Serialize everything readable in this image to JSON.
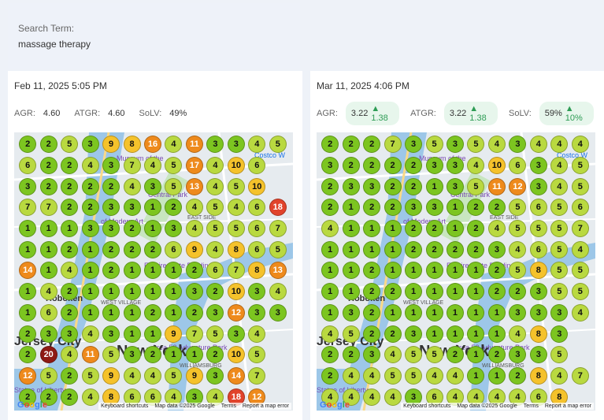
{
  "search": {
    "label": "Search Term:",
    "value": "massage therapy"
  },
  "colors": {
    "green": "#7cc520",
    "lime": "#b9d940",
    "yellow": "#f5c22b",
    "orange": "#ee8a1c",
    "red": "#e1432b",
    "darkred": "#8e1a14"
  },
  "panels": [
    {
      "title": "Feb 11, 2025 5:05 PM",
      "agr_label": "AGR:",
      "agr_value": "4.60",
      "atgr_label": "ATGR:",
      "atgr_value": "4.60",
      "solv_label": "SoLV:",
      "solv_value": "49%",
      "grid": [
        [
          2,
          2,
          5,
          3,
          9,
          8,
          16,
          4,
          11,
          3,
          3,
          4,
          5
        ],
        [
          6,
          2,
          2,
          4,
          3,
          7,
          4,
          5,
          17,
          4,
          10,
          6,
          0
        ],
        [
          3,
          2,
          2,
          2,
          2,
          4,
          3,
          5,
          13,
          4,
          5,
          10,
          0
        ],
        [
          7,
          7,
          2,
          2,
          3,
          3,
          1,
          2,
          4,
          5,
          4,
          6,
          18
        ],
        [
          1,
          1,
          1,
          3,
          3,
          2,
          1,
          3,
          4,
          5,
          5,
          6,
          7
        ],
        [
          1,
          1,
          2,
          1,
          2,
          2,
          2,
          6,
          9,
          4,
          8,
          6,
          5
        ],
        [
          14,
          1,
          4,
          1,
          2,
          1,
          1,
          1,
          2,
          6,
          7,
          8,
          13
        ],
        [
          1,
          4,
          2,
          1,
          1,
          1,
          1,
          1,
          3,
          2,
          10,
          3,
          4
        ],
        [
          1,
          6,
          2,
          1,
          1,
          1,
          2,
          1,
          2,
          3,
          12,
          3,
          3
        ],
        [
          2,
          3,
          3,
          4,
          3,
          1,
          1,
          9,
          7,
          5,
          3,
          4,
          0
        ],
        [
          2,
          20,
          4,
          11,
          5,
          3,
          2,
          1,
          1,
          2,
          10,
          5,
          0
        ],
        [
          12,
          5,
          2,
          5,
          9,
          4,
          4,
          5,
          9,
          3,
          14,
          7,
          0
        ],
        [
          2,
          2,
          2,
          4,
          8,
          6,
          6,
          4,
          3,
          4,
          18,
          12,
          0
        ]
      ],
      "grid_colors": [
        [
          "green",
          "green",
          "lime",
          "green",
          "yellow",
          "yellow",
          "orange",
          "lime",
          "orange",
          "green",
          "green",
          "lime",
          "lime"
        ],
        [
          "lime",
          "green",
          "green",
          "lime",
          "green",
          "lime",
          "lime",
          "lime",
          "orange",
          "lime",
          "yellow",
          "lime",
          "none"
        ],
        [
          "green",
          "green",
          "green",
          "green",
          "green",
          "lime",
          "green",
          "lime",
          "orange",
          "lime",
          "lime",
          "yellow",
          "none"
        ],
        [
          "lime",
          "lime",
          "green",
          "green",
          "green",
          "green",
          "green",
          "green",
          "lime",
          "lime",
          "lime",
          "lime",
          "red"
        ],
        [
          "green",
          "green",
          "green",
          "green",
          "green",
          "green",
          "green",
          "green",
          "lime",
          "lime",
          "lime",
          "lime",
          "lime"
        ],
        [
          "green",
          "green",
          "green",
          "green",
          "green",
          "green",
          "green",
          "lime",
          "yellow",
          "lime",
          "yellow",
          "lime",
          "lime"
        ],
        [
          "orange",
          "green",
          "lime",
          "green",
          "green",
          "green",
          "green",
          "green",
          "green",
          "lime",
          "lime",
          "yellow",
          "orange"
        ],
        [
          "green",
          "lime",
          "green",
          "green",
          "green",
          "green",
          "green",
          "green",
          "green",
          "green",
          "yellow",
          "green",
          "lime"
        ],
        [
          "green",
          "lime",
          "green",
          "green",
          "green",
          "green",
          "green",
          "green",
          "green",
          "green",
          "orange",
          "green",
          "green"
        ],
        [
          "green",
          "green",
          "green",
          "lime",
          "green",
          "green",
          "green",
          "yellow",
          "lime",
          "lime",
          "green",
          "lime",
          "none"
        ],
        [
          "green",
          "darkred",
          "lime",
          "orange",
          "lime",
          "green",
          "green",
          "green",
          "green",
          "green",
          "yellow",
          "lime",
          "none"
        ],
        [
          "orange",
          "lime",
          "green",
          "lime",
          "yellow",
          "lime",
          "lime",
          "lime",
          "yellow",
          "green",
          "orange",
          "lime",
          "none"
        ],
        [
          "green",
          "green",
          "green",
          "lime",
          "yellow",
          "lime",
          "lime",
          "lime",
          "green",
          "lime",
          "red",
          "orange",
          "none"
        ]
      ],
      "map_labels": [
        {
          "text": "Museum of the",
          "cls": "poi"
        },
        {
          "text": "of Modern Art",
          "cls": "poi"
        },
        {
          "text": "Costco W",
          "cls": "poi"
        },
        {
          "text": "Central Park",
          "cls": "poi"
        },
        {
          "text": "EAST SIDE",
          "cls": "small"
        },
        {
          "text": "Empire State Building",
          "cls": "poi"
        },
        {
          "text": "Hoboken",
          "cls": "city"
        },
        {
          "text": "WEST VILLAGE",
          "cls": "small"
        },
        {
          "text": "Jersey City",
          "cls": "big"
        },
        {
          "text": "New York",
          "cls": "big"
        },
        {
          "text": "WILLIAMSBURG",
          "cls": "small"
        },
        {
          "text": "Statue of Liberty",
          "cls": "poi"
        },
        {
          "text": "Area 53 Adventure Park",
          "cls": "poi"
        }
      ],
      "footer": {
        "shortcuts": "Keyboard shortcuts",
        "mapdata": "Map data ©2025 Google",
        "terms": "Terms",
        "report": "Report a map error"
      }
    },
    {
      "title": "Mar 11, 2025 4:06 PM",
      "agr_label": "AGR:",
      "agr_value": "3.22",
      "agr_delta": "▲ 1.38",
      "atgr_label": "ATGR:",
      "atgr_value": "3.22",
      "atgr_delta": "▲ 1.38",
      "solv_label": "SoLV:",
      "solv_value": "59%",
      "solv_delta": "▲ 10%",
      "grid": [
        [
          2,
          2,
          2,
          7,
          3,
          5,
          3,
          5,
          4,
          3,
          4,
          4,
          4
        ],
        [
          3,
          2,
          2,
          2,
          2,
          3,
          3,
          4,
          10,
          6,
          3,
          4,
          5
        ],
        [
          2,
          3,
          3,
          2,
          2,
          1,
          3,
          5,
          11,
          12,
          3,
          4,
          5
        ],
        [
          2,
          1,
          2,
          2,
          3,
          3,
          1,
          2,
          2,
          5,
          6,
          5,
          6
        ],
        [
          4,
          1,
          1,
          1,
          2,
          2,
          1,
          2,
          4,
          5,
          5,
          5,
          7
        ],
        [
          1,
          1,
          1,
          1,
          2,
          2,
          2,
          2,
          3,
          4,
          6,
          5,
          4
        ],
        [
          1,
          1,
          2,
          1,
          1,
          1,
          1,
          1,
          2,
          5,
          8,
          5,
          5
        ],
        [
          1,
          1,
          2,
          2,
          1,
          1,
          1,
          1,
          2,
          2,
          3,
          5,
          5
        ],
        [
          1,
          3,
          2,
          1,
          1,
          1,
          1,
          1,
          1,
          3,
          3,
          3,
          4
        ],
        [
          4,
          5,
          2,
          2,
          3,
          1,
          1,
          1,
          1,
          4,
          8,
          3,
          0
        ],
        [
          2,
          2,
          3,
          4,
          5,
          5,
          2,
          1,
          2,
          3,
          3,
          5,
          0
        ],
        [
          2,
          4,
          4,
          5,
          5,
          4,
          4,
          1,
          1,
          2,
          8,
          4,
          7
        ],
        [
          4,
          4,
          4,
          4,
          3,
          6,
          4,
          4,
          4,
          4,
          6,
          8,
          0
        ]
      ],
      "grid_colors": [
        [
          "green",
          "green",
          "green",
          "lime",
          "green",
          "lime",
          "green",
          "lime",
          "lime",
          "green",
          "lime",
          "lime",
          "lime"
        ],
        [
          "green",
          "green",
          "green",
          "green",
          "green",
          "green",
          "green",
          "lime",
          "yellow",
          "lime",
          "green",
          "lime",
          "lime"
        ],
        [
          "green",
          "green",
          "green",
          "green",
          "green",
          "green",
          "green",
          "lime",
          "orange",
          "orange",
          "green",
          "lime",
          "lime"
        ],
        [
          "green",
          "green",
          "green",
          "green",
          "green",
          "green",
          "green",
          "green",
          "green",
          "lime",
          "lime",
          "lime",
          "lime"
        ],
        [
          "lime",
          "green",
          "green",
          "green",
          "green",
          "green",
          "green",
          "green",
          "lime",
          "lime",
          "lime",
          "lime",
          "lime"
        ],
        [
          "green",
          "green",
          "green",
          "green",
          "green",
          "green",
          "green",
          "green",
          "green",
          "lime",
          "lime",
          "lime",
          "lime"
        ],
        [
          "green",
          "green",
          "green",
          "green",
          "green",
          "green",
          "green",
          "green",
          "green",
          "lime",
          "yellow",
          "lime",
          "lime"
        ],
        [
          "green",
          "green",
          "green",
          "green",
          "green",
          "green",
          "green",
          "green",
          "green",
          "green",
          "green",
          "lime",
          "lime"
        ],
        [
          "green",
          "green",
          "green",
          "green",
          "green",
          "green",
          "green",
          "green",
          "green",
          "green",
          "green",
          "green",
          "lime"
        ],
        [
          "lime",
          "lime",
          "green",
          "green",
          "green",
          "green",
          "green",
          "green",
          "green",
          "lime",
          "yellow",
          "green",
          "none"
        ],
        [
          "green",
          "green",
          "green",
          "lime",
          "lime",
          "lime",
          "green",
          "green",
          "green",
          "green",
          "green",
          "lime",
          "none"
        ],
        [
          "green",
          "lime",
          "lime",
          "lime",
          "lime",
          "lime",
          "lime",
          "green",
          "green",
          "green",
          "yellow",
          "lime",
          "lime"
        ],
        [
          "lime",
          "lime",
          "lime",
          "lime",
          "green",
          "lime",
          "lime",
          "lime",
          "lime",
          "lime",
          "lime",
          "yellow",
          "none"
        ]
      ],
      "footer": {
        "shortcuts": "Keyboard shortcuts",
        "mapdata": "Map data ©2025 Google",
        "terms": "Terms",
        "report": "Report a map error"
      }
    }
  ]
}
